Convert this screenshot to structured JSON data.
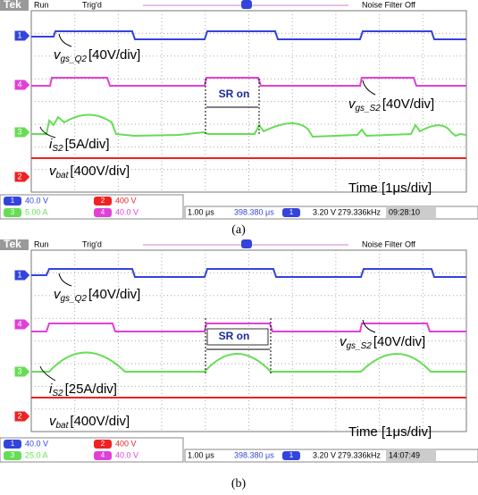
{
  "panels": [
    {
      "caption": "(a)",
      "header": {
        "logo": "Tek",
        "state": "Run",
        "trigger": "Trig'd",
        "filter": "Noise Filter Off"
      },
      "channels": [
        "1",
        "4",
        "3",
        "2"
      ],
      "labels": {
        "vgs_q2": {
          "symbol": "v",
          "subscript": "gs_Q2",
          "scale": "[40V/div]"
        },
        "vgs_s2": {
          "symbol": "v",
          "subscript": "gs_S2",
          "scale": "[40V/div]"
        },
        "is2": {
          "symbol": "i",
          "subscript": "S2",
          "scale": "[5A/div]"
        },
        "vbat": {
          "symbol": "v",
          "subscript": "bat",
          "scale": "[400V/div]"
        },
        "sr_on": "SR on",
        "time": "Time [1μs/div]"
      },
      "status": {
        "ch1": {
          "id": "1",
          "value": "40.0 V"
        },
        "ch2": {
          "id": "2",
          "value": "400 V"
        },
        "ch3": {
          "id": "3",
          "value": "5.00 A"
        },
        "ch4": {
          "id": "4",
          "value": "40.0 V"
        },
        "timebase": "1.00 μs",
        "position": "398.380 μs",
        "trig_ch": "1",
        "trig_level": "3.20 V",
        "frequency": "279.336kHz",
        "clock": "09:28:10"
      }
    },
    {
      "caption": "(b)",
      "header": {
        "logo": "Tek",
        "state": "Run",
        "trigger": "Trig'd",
        "filter": "Noise Filter Off"
      },
      "channels": [
        "1",
        "4",
        "3",
        "2"
      ],
      "labels": {
        "vgs_q2": {
          "symbol": "v",
          "subscript": "gs_Q2",
          "scale": "[40V/div]"
        },
        "vgs_s2": {
          "symbol": "v",
          "subscript": "gs_S2",
          "scale": "[40V/div]"
        },
        "is2": {
          "symbol": "i",
          "subscript": "S2",
          "scale": "[25A/div]"
        },
        "vbat": {
          "symbol": "v",
          "subscript": "bat",
          "scale": "[400V/div]"
        },
        "sr_on": "SR on",
        "time": "Time [1μs/div]"
      },
      "status": {
        "ch1": {
          "id": "1",
          "value": "40.0 V"
        },
        "ch2": {
          "id": "2",
          "value": "400 V"
        },
        "ch3": {
          "id": "3",
          "value": "25.0 A"
        },
        "ch4": {
          "id": "4",
          "value": "40.0 V"
        },
        "timebase": "1.00 μs",
        "position": "398.380 μs",
        "trig_ch": "1",
        "trig_level": "3.20 V",
        "frequency": "279.336kHz",
        "clock": "14:07:49"
      }
    }
  ]
}
